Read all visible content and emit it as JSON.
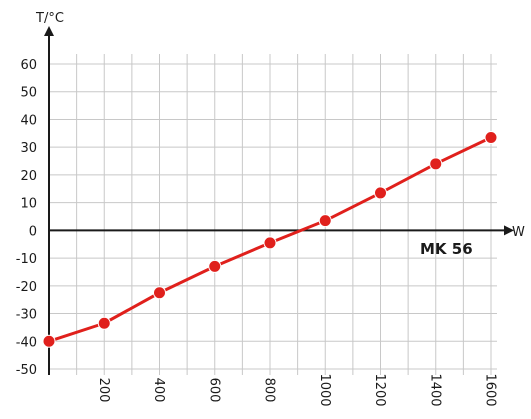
{
  "chart_data": {
    "type": "line",
    "title": "",
    "xlabel": "W",
    "ylabel": "T/°C",
    "annotation": "MK 56",
    "xlim": [
      0,
      1600
    ],
    "ylim": [
      -50,
      60
    ],
    "x_ticks": [
      200,
      400,
      600,
      800,
      1000,
      1200,
      1400,
      1600
    ],
    "y_ticks": [
      60,
      50,
      40,
      30,
      20,
      10,
      0,
      -10,
      -20,
      -30,
      -40,
      -50
    ],
    "x_tick_labels": [
      "200",
      "400",
      "600",
      "800",
      "1000",
      "1200",
      "1400",
      "1600"
    ],
    "y_tick_labels": [
      "60",
      "50",
      "40",
      "30",
      "20",
      "10",
      "0",
      "-10",
      "-20",
      "-30",
      "-40",
      "-50"
    ],
    "grid": true,
    "series": [
      {
        "color": "#e0201c",
        "x": [
          0,
          200,
          400,
          600,
          800,
          1000,
          1200,
          1400,
          1600
        ],
        "values": [
          -40,
          -33.5,
          -22.5,
          -13,
          -4.5,
          3.5,
          13.5,
          24,
          33.5
        ]
      }
    ]
  }
}
